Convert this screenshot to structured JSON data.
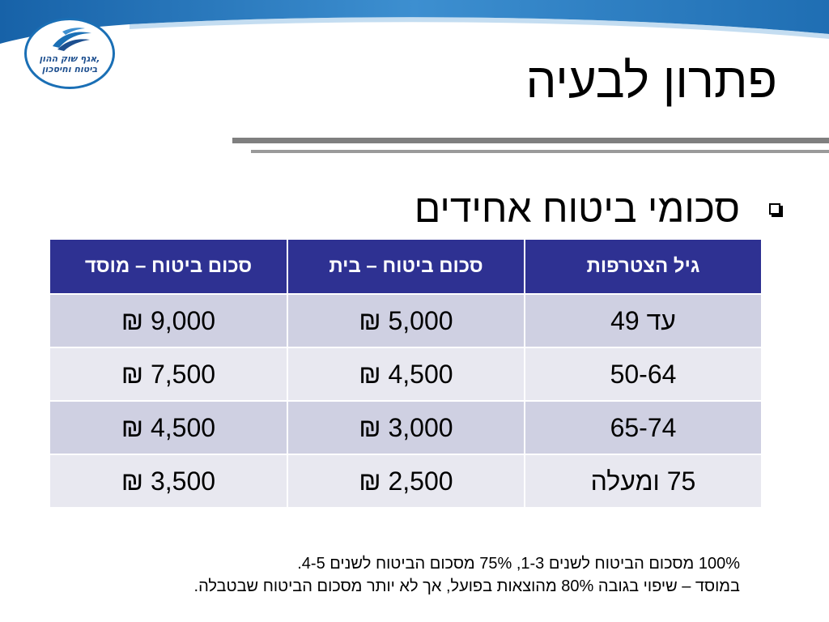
{
  "logo": {
    "line1": "אגף שוק ההון,",
    "line2": "ביטוח וחיסכון"
  },
  "title": "פתרון לבעיה",
  "bullet": "סכומי ביטוח אחידים",
  "table": {
    "headers": [
      "גיל הצטרפות",
      "סכום ביטוח – בית",
      "סכום ביטוח – מוסד"
    ],
    "rows": [
      [
        "עד 49",
        "5,000 ₪",
        "9,000 ₪"
      ],
      [
        "50-64",
        "4,500 ₪",
        "7,500 ₪"
      ],
      [
        "65-74",
        "3,000 ₪",
        "4,500 ₪"
      ],
      [
        "75 ומעלה",
        "2,500 ₪",
        "3,500 ₪"
      ]
    ]
  },
  "notes": [
    "100% מסכום הביטוח לשנים 1-3, 75% מסכום הביטוח לשנים 4-5.",
    "במוסד – שיפוי בגובה 80% מהוצאות בפועל, אך לא יותר מסכום הביטוח שבטבלה."
  ],
  "colors": {
    "header_blue": "#2e3192",
    "row_dark": "#cfd0e2",
    "row_light": "#e8e8f0",
    "band_blue": "#1a6fb5"
  }
}
